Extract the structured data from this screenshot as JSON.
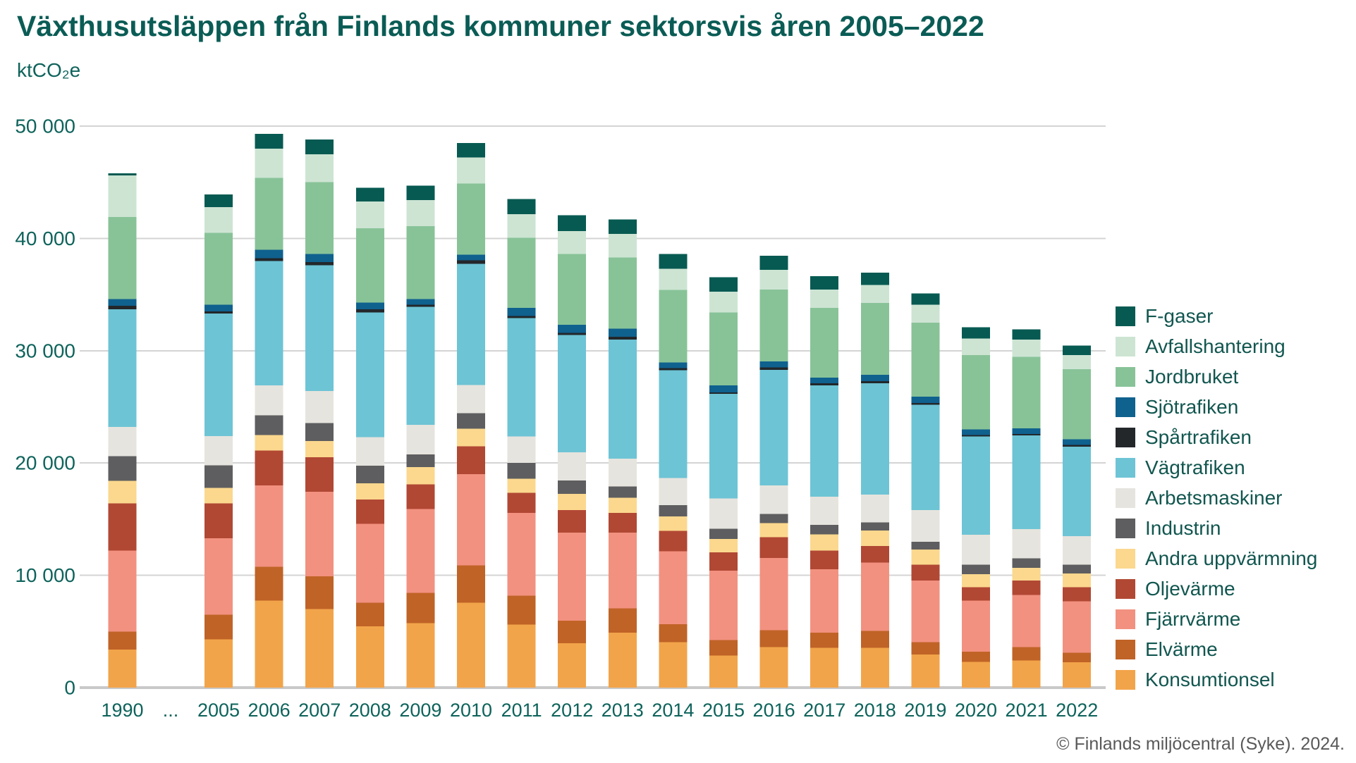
{
  "title": "Växthusutsläppen från Finlands kommuner sektorsvis åren 2005–2022",
  "y_axis_unit": "ktCO₂e",
  "footer": "© Finlands miljöcentral (Syke). 2024.",
  "style": {
    "background": "#ffffff",
    "title_color": "#0a5c55",
    "axis_text_color": "#0e635b",
    "legend_text_color": "#11564f",
    "footer_color": "#595959",
    "gridline_color": "#d4d4d4",
    "baseline_color": "#c9c9c9"
  },
  "chart_data": {
    "type": "bar",
    "stacked": true,
    "title": "Växthusutsläppen från Finlands kommuner sektorsvis åren 2005–2022",
    "ylabel": "ktCO₂e",
    "xlabel": "",
    "ylim": [
      0,
      50000
    ],
    "grid": true,
    "legend_position": "right",
    "y_ticks": [
      {
        "value": 0,
        "label": "0"
      },
      {
        "value": 10000,
        "label": "10 000"
      },
      {
        "value": 20000,
        "label": "20 000"
      },
      {
        "value": 30000,
        "label": "30 000"
      },
      {
        "value": 40000,
        "label": "40 000"
      },
      {
        "value": 50000,
        "label": "50 000"
      }
    ],
    "x_gap_label": "...",
    "categories": [
      "1990",
      "2005",
      "2006",
      "2007",
      "2008",
      "2009",
      "2010",
      "2011",
      "2012",
      "2013",
      "2014",
      "2015",
      "2016",
      "2017",
      "2018",
      "2019",
      "2020",
      "2021",
      "2022"
    ],
    "series": [
      {
        "name": "F-gaser",
        "color": "#075a52",
        "values": [
          200,
          1100,
          1300,
          1300,
          1200,
          1300,
          1300,
          1350,
          1400,
          1300,
          1300,
          1300,
          1250,
          1200,
          1100,
          1000,
          1000,
          900,
          850
        ]
      },
      {
        "name": "Avfallshantering",
        "color": "#cde4d3",
        "values": [
          3700,
          2300,
          2600,
          2500,
          2400,
          2300,
          2300,
          2100,
          2050,
          2100,
          1900,
          1850,
          1750,
          1650,
          1600,
          1600,
          1500,
          1550,
          1250
        ]
      },
      {
        "name": "Jordbruket",
        "color": "#88c398",
        "values": [
          7300,
          6400,
          6400,
          6400,
          6600,
          6500,
          6350,
          6250,
          6300,
          6350,
          6450,
          6500,
          6400,
          6200,
          6400,
          6600,
          6600,
          6350,
          6250
        ]
      },
      {
        "name": "Sjötrafiken",
        "color": "#0f618e",
        "values": [
          600,
          600,
          750,
          700,
          600,
          500,
          500,
          700,
          700,
          700,
          500,
          600,
          550,
          500,
          550,
          550,
          500,
          500,
          500
        ]
      },
      {
        "name": "Spårtrafiken",
        "color": "#23272a",
        "values": [
          300,
          200,
          250,
          300,
          300,
          200,
          300,
          200,
          200,
          250,
          200,
          150,
          200,
          200,
          200,
          150,
          150,
          150,
          150
        ]
      },
      {
        "name": "Vägtrafiken",
        "color": "#6dc4d5",
        "values": [
          10500,
          10900,
          11100,
          11200,
          11100,
          10500,
          10800,
          10550,
          10450,
          10600,
          9600,
          9300,
          10300,
          9900,
          9900,
          9400,
          8750,
          8350,
          7950
        ]
      },
      {
        "name": "Arbetsmaskiner",
        "color": "#e6e4de",
        "values": [
          2600,
          2600,
          2650,
          2850,
          2550,
          2650,
          2500,
          2350,
          2500,
          2500,
          2400,
          2700,
          2550,
          2500,
          2500,
          2800,
          2650,
          2600,
          2550
        ]
      },
      {
        "name": "Industrin",
        "color": "#5e5e60",
        "values": [
          2200,
          2000,
          1750,
          1600,
          1550,
          1100,
          1400,
          1400,
          1200,
          1000,
          1000,
          900,
          800,
          850,
          700,
          700,
          850,
          850,
          800
        ]
      },
      {
        "name": "Andra uppvärmning",
        "color": "#fbd88e",
        "values": [
          2000,
          1400,
          1400,
          1450,
          1450,
          1550,
          1550,
          1250,
          1450,
          1350,
          1300,
          1200,
          1250,
          1450,
          1400,
          1350,
          1150,
          1100,
          1200
        ]
      },
      {
        "name": "Oljevärme",
        "color": "#b14834",
        "values": [
          4200,
          3100,
          3100,
          3050,
          2150,
          2200,
          2500,
          1800,
          2000,
          1750,
          1800,
          1650,
          1850,
          1650,
          1450,
          1400,
          1200,
          1300,
          1250
        ]
      },
      {
        "name": "Fjärrvärme",
        "color": "#f29180",
        "values": [
          7200,
          6800,
          7250,
          7550,
          7050,
          7450,
          8100,
          7350,
          7850,
          6750,
          6500,
          6150,
          6450,
          5650,
          6100,
          5500,
          4550,
          4650,
          4600
        ]
      },
      {
        "name": "Elvärme",
        "color": "#c06327",
        "values": [
          1600,
          2200,
          3000,
          2900,
          2100,
          2700,
          3350,
          2600,
          2000,
          2150,
          1600,
          1400,
          1500,
          1350,
          1500,
          1100,
          900,
          1200,
          850
        ]
      },
      {
        "name": "Konsumtionsel",
        "color": "#f2a44a",
        "values": [
          3400,
          4300,
          7750,
          7000,
          5450,
          5750,
          7550,
          5600,
          3950,
          4900,
          4050,
          2850,
          3600,
          3550,
          3550,
          2950,
          2300,
          2400,
          2250
        ]
      }
    ]
  }
}
